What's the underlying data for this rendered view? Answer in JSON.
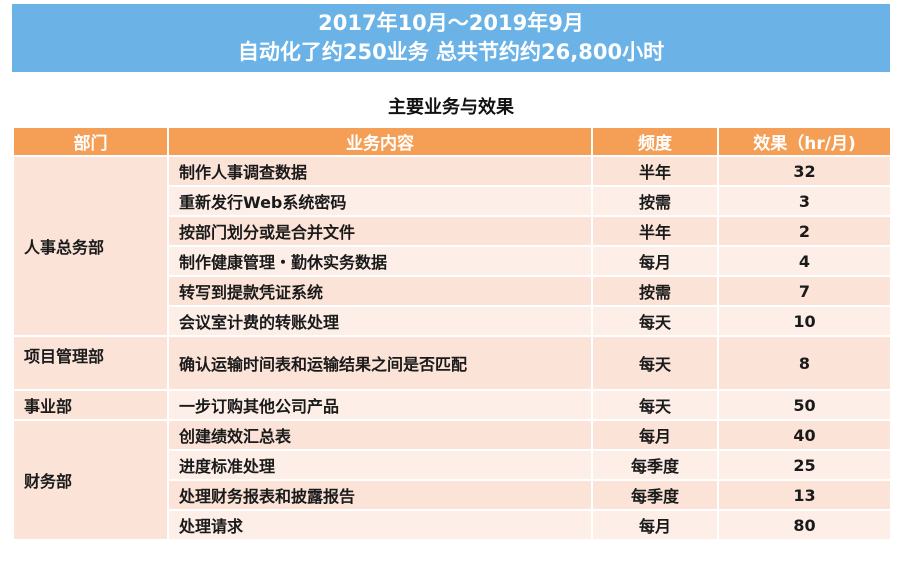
{
  "banner": {
    "line1": "2017年10月～2019年9月",
    "line2": "自动化了约250业务 总共节约约26,800小时"
  },
  "section_title": "主要业务与效果",
  "table": {
    "headers": [
      "部门",
      "业务内容",
      "频度",
      "效果（hr/月)"
    ],
    "groups": [
      {
        "dept": "人事总务部",
        "rows": [
          {
            "task": "制作人事调查数据",
            "freq": "半年",
            "effect": "32"
          },
          {
            "task": "重新发行Web系统密码",
            "freq": "按需",
            "effect": "3"
          },
          {
            "task": "按部门划分或是合并文件",
            "freq": "半年",
            "effect": "2"
          },
          {
            "task": "制作健康管理・勤休实务数据",
            "freq": "每月",
            "effect": "4"
          },
          {
            "task": "转写到提款凭证系统",
            "freq": "按需",
            "effect": "7"
          },
          {
            "task": "会议室计费的转账处理",
            "freq": "每天",
            "effect": "10"
          }
        ]
      },
      {
        "dept": "项目管理部",
        "rows": [
          {
            "task": "确认运输时间表和运输结果之间是否匹配",
            "freq": "每天",
            "effect": "8"
          }
        ]
      },
      {
        "dept": "事业部",
        "rows": [
          {
            "task": "一步订购其他公司产品",
            "freq": "每天",
            "effect": "50"
          }
        ]
      },
      {
        "dept": "财务部",
        "rows": [
          {
            "task": "创建绩效汇总表",
            "freq": "每月",
            "effect": "40"
          },
          {
            "task": "进度标准处理",
            "freq": "每季度",
            "effect": "25"
          },
          {
            "task": "处理财务报表和披露报告",
            "freq": "每季度",
            "effect": "13"
          },
          {
            "task": "处理请求",
            "freq": "每月",
            "effect": "80"
          }
        ]
      }
    ]
  }
}
